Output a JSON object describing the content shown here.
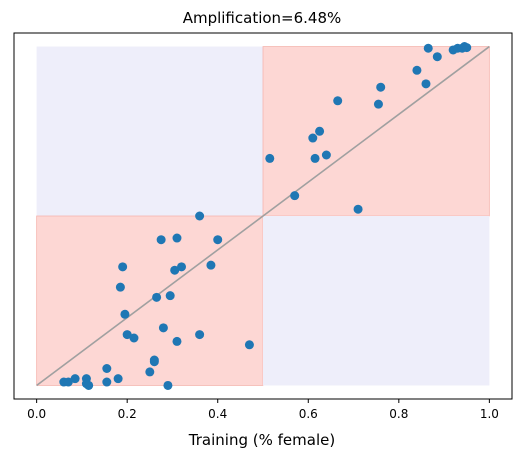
{
  "chart_data": {
    "type": "scatter",
    "title": "Amplification=6.48%",
    "xlabel": "Training (% female)",
    "ylabel": "",
    "xlim": [
      -0.05,
      1.05
    ],
    "ylim": [
      -0.04,
      1.04
    ],
    "xticks": [
      "0.0",
      "0.2",
      "0.4",
      "0.6",
      "0.8",
      "1.0"
    ],
    "xtick_values": [
      0.0,
      0.2,
      0.4,
      0.6,
      0.8,
      1.0
    ],
    "y_ticks_shown": false,
    "grid": false,
    "colors": {
      "points": "#1f77b4",
      "diagonal": "#a0a0a0",
      "amplified_region": "#fdd7d4",
      "amplified_edge": "#f5b5ae",
      "reduced_region": "#eeeefa"
    },
    "reference_line": {
      "from": [
        0,
        0
      ],
      "to": [
        1,
        1
      ]
    },
    "shaded_regions": [
      {
        "kind": "reduced",
        "x": [
          0.0,
          0.5
        ],
        "y": [
          0.5,
          1.0
        ]
      },
      {
        "kind": "amplified",
        "x": [
          0.0,
          0.5
        ],
        "y": [
          0.0,
          0.5
        ]
      },
      {
        "kind": "amplified",
        "x": [
          0.5,
          1.0
        ],
        "y": [
          0.5,
          1.0
        ]
      },
      {
        "kind": "reduced",
        "x": [
          0.5,
          1.0
        ],
        "y": [
          0.0,
          0.5
        ]
      }
    ],
    "points": [
      [
        0.06,
        0.01
      ],
      [
        0.07,
        0.01
      ],
      [
        0.085,
        0.02
      ],
      [
        0.11,
        0.02
      ],
      [
        0.11,
        0.005
      ],
      [
        0.115,
        0.0
      ],
      [
        0.155,
        0.01
      ],
      [
        0.155,
        0.05
      ],
      [
        0.18,
        0.02
      ],
      [
        0.185,
        0.29
      ],
      [
        0.19,
        0.35
      ],
      [
        0.195,
        0.21
      ],
      [
        0.2,
        0.15
      ],
      [
        0.215,
        0.14
      ],
      [
        0.25,
        0.04
      ],
      [
        0.26,
        0.07
      ],
      [
        0.26,
        0.075
      ],
      [
        0.265,
        0.26
      ],
      [
        0.275,
        0.43
      ],
      [
        0.28,
        0.17
      ],
      [
        0.29,
        0.0
      ],
      [
        0.295,
        0.265
      ],
      [
        0.305,
        0.34
      ],
      [
        0.31,
        0.13
      ],
      [
        0.31,
        0.435
      ],
      [
        0.32,
        0.35
      ],
      [
        0.36,
        0.15
      ],
      [
        0.36,
        0.5
      ],
      [
        0.385,
        0.355
      ],
      [
        0.4,
        0.43
      ],
      [
        0.47,
        0.12
      ],
      [
        0.515,
        0.67
      ],
      [
        0.57,
        0.56
      ],
      [
        0.61,
        0.73
      ],
      [
        0.615,
        0.67
      ],
      [
        0.625,
        0.75
      ],
      [
        0.64,
        0.68
      ],
      [
        0.665,
        0.84
      ],
      [
        0.71,
        0.52
      ],
      [
        0.755,
        0.83
      ],
      [
        0.76,
        0.88
      ],
      [
        0.84,
        0.93
      ],
      [
        0.86,
        0.89
      ],
      [
        0.865,
        0.995
      ],
      [
        0.885,
        0.97
      ],
      [
        0.92,
        0.99
      ],
      [
        0.93,
        0.995
      ],
      [
        0.94,
        0.995
      ],
      [
        0.945,
        1.0
      ],
      [
        0.95,
        0.997
      ]
    ]
  }
}
